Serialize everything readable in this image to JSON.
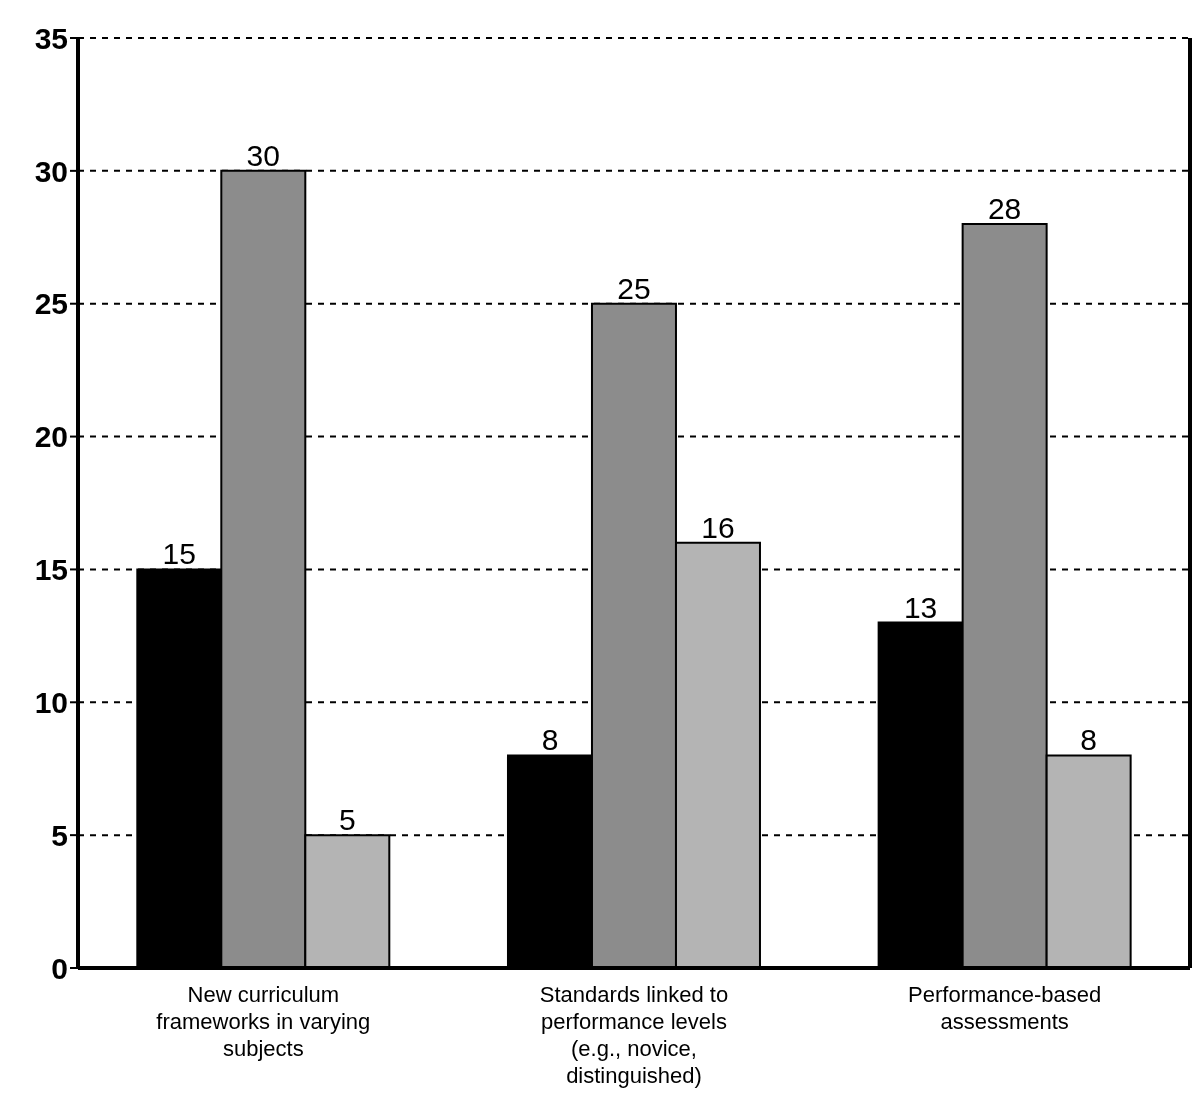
{
  "chart_data": {
    "type": "bar",
    "categories": [
      "New curriculum frameworks in varying subjects",
      "Standards linked to performance levels (e.g., novice, distinguished)",
      "Performance-based assessments"
    ],
    "series": [
      {
        "color": "#000000",
        "values": [
          15,
          8,
          13
        ]
      },
      {
        "color": "#8c8c8c",
        "values": [
          30,
          25,
          28
        ]
      },
      {
        "color": "#b4b4b4",
        "values": [
          5,
          16,
          8
        ]
      }
    ],
    "ylim": [
      0,
      35
    ],
    "yticks": [
      0,
      5,
      10,
      15,
      20,
      25,
      30,
      35
    ],
    "grid": "y",
    "data_labels": true
  }
}
